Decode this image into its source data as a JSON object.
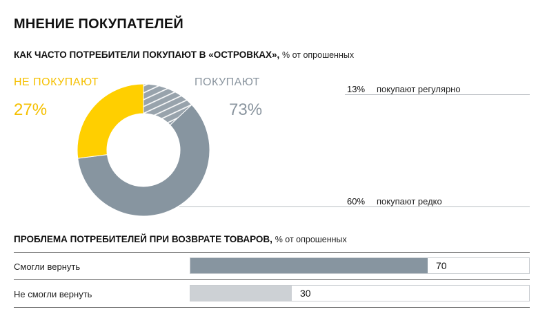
{
  "title": "МНЕНИЕ ПОКУПАТЕЛЕЙ",
  "colors": {
    "yellow": "#FFCF00",
    "gray": "#8795A0",
    "light_gray": "#CDD1D5",
    "hatch": "#98A3AC"
  },
  "chart_data": [
    {
      "type": "pie",
      "title": "КАК ЧАСТО ПОТРЕБИТЕЛИ ПОКУПАЮТ В «ОСТРОВКАХ»,",
      "unit": "% от опрошенных",
      "groups": [
        {
          "label": "НЕ ПОКУПАЮТ",
          "value_text": "27%",
          "value": 27
        },
        {
          "label": "ПОКУПАЮТ",
          "value_text": "73%",
          "value": 73
        }
      ],
      "slices": [
        {
          "label": "покупают регулярно",
          "value": 13,
          "value_text": "13%"
        },
        {
          "label": "покупают редко",
          "value": 60,
          "value_text": "60%"
        },
        {
          "label": "НЕ ПОКУПАЮТ",
          "value": 27,
          "value_text": "27%"
        }
      ]
    },
    {
      "type": "bar",
      "title": "ПРОБЛЕМА ПОТРЕБИТЕЛЕЙ ПРИ ВОЗВРАТЕ ТОВАРОВ,",
      "unit": "% от опрошенных",
      "categories": [
        "Смогли вернуть",
        "Не смогли вернуть"
      ],
      "values": [
        70,
        30
      ],
      "ylim": [
        0,
        100
      ]
    }
  ]
}
